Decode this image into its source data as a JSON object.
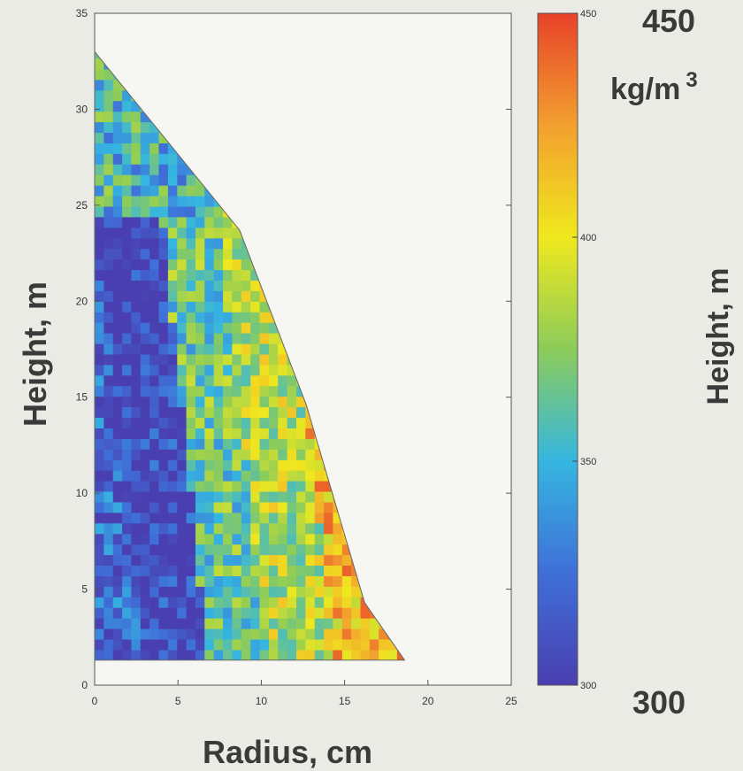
{
  "chart_data": {
    "type": "heatmap",
    "title": "",
    "xlabel": "Radius, cm",
    "ylabel": "Height, m",
    "right_label": "Height, m",
    "xlim": [
      0,
      25
    ],
    "ylim": [
      0,
      35
    ],
    "xticks": [
      0,
      5,
      10,
      15,
      20,
      25
    ],
    "yticks": [
      0,
      5,
      10,
      15,
      20,
      25,
      30,
      35
    ],
    "grid": false,
    "colorbar": {
      "min": 300,
      "max": 450,
      "ticks": [
        300,
        350,
        400,
        450
      ],
      "max_label": "450",
      "min_label": "300",
      "unit_label": "kg/m",
      "unit_superscript": "3",
      "colormap": "parula-like",
      "colors": [
        "#4a3fb0",
        "#3f6fd8",
        "#35b6e0",
        "#8ccc5a",
        "#f0e81e",
        "#f2a02e",
        "#e8422a"
      ]
    },
    "stem_outline": {
      "radius_cm": [
        0,
        8.7,
        12.7,
        16.2,
        18.6,
        18.6,
        0
      ],
      "height_m": [
        33,
        23.7,
        14.6,
        4.3,
        1.3,
        1.3,
        1.3
      ]
    },
    "density_bands": [
      {
        "from_radius_cm": 0,
        "to_radius_cm": 2.5,
        "value_kg_m3": 320
      },
      {
        "from_radius_cm": 2.5,
        "to_radius_cm": 6.5,
        "value_kg_m3": 305
      },
      {
        "from_radius_cm": 6.5,
        "to_radius_cm": 10,
        "value_kg_m3": 365
      },
      {
        "from_radius_cm": 10,
        "to_radius_cm": 14,
        "value_kg_m3": 385
      },
      {
        "from_radius_cm": 14,
        "to_radius_cm": 18.6,
        "value_kg_m3": 415
      }
    ]
  }
}
